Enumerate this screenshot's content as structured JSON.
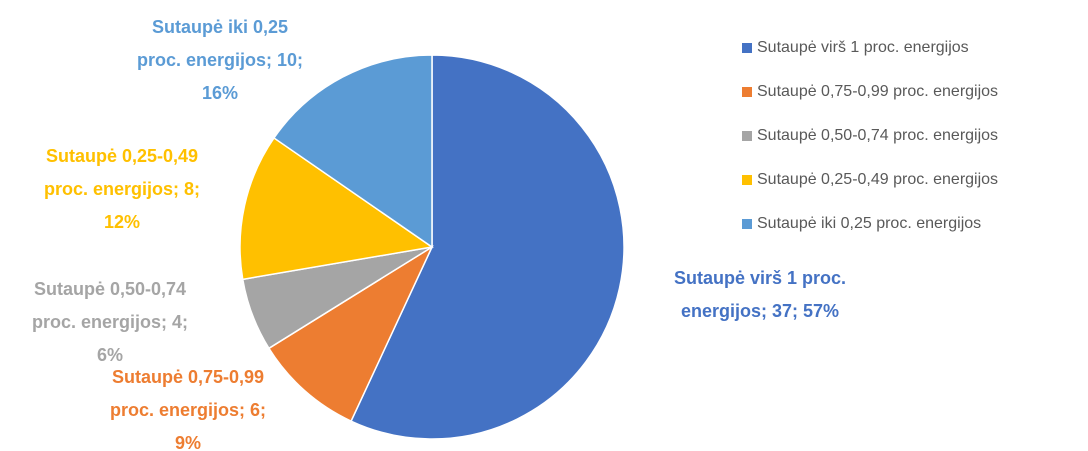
{
  "chart_data": {
    "type": "pie",
    "categories": [
      "Sutaupė virš 1 proc. energijos",
      "Sutaupė 0,75-0,99 proc. energijos",
      "Sutaupė 0,50-0,74 proc. energijos",
      "Sutaupė 0,25-0,49 proc. energijos",
      "Sutaupė iki 0,25 proc. energijos"
    ],
    "values": [
      37,
      6,
      4,
      8,
      10
    ],
    "value_labels": [
      [
        "Sutaupė virš 1 proc.",
        "energijos; 37; 57%"
      ],
      [
        "Sutaupė 0,75-0,99",
        "proc. energijos; 6;",
        "9%"
      ],
      [
        "Sutaupė 0,50-0,74",
        "proc. energijos; 4;",
        "6%"
      ],
      [
        "Sutaupė 0,25-0,49",
        "proc. energijos; 8;",
        "12%"
      ],
      [
        "Sutaupė iki 0,25",
        "proc. energijos; 10;",
        "16%"
      ]
    ],
    "colors": [
      "#4472c4",
      "#ed7d31",
      "#a5a5a5",
      "#ffc000",
      "#5b9bd5"
    ],
    "legend": "right"
  }
}
